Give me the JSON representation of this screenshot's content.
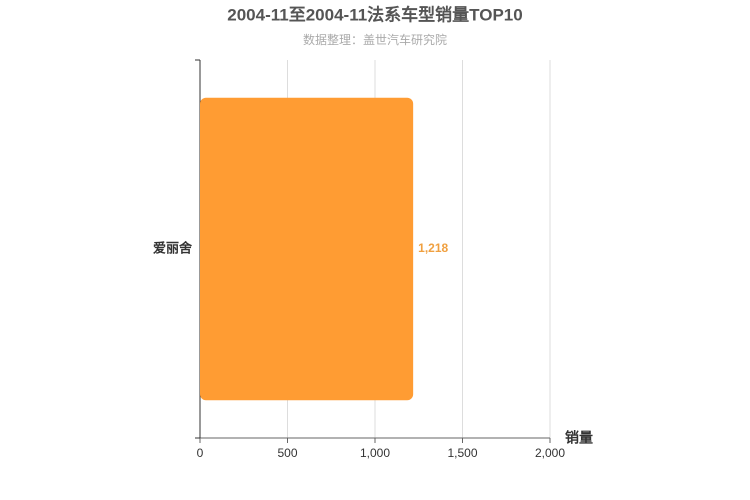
{
  "chart_data": {
    "type": "bar",
    "orientation": "horizontal",
    "title": "2004-11至2004-11法系车型销量TOP10",
    "subtitle": "数据整理：盖世汽车研究院",
    "x_label": "销量",
    "categories": [
      "爱丽舍"
    ],
    "values": [
      1218
    ],
    "value_labels": [
      "1,218"
    ],
    "color": "#ff9c33",
    "xlim": [
      0,
      2000
    ],
    "xticks": [
      0,
      500,
      {
        "value": 1000,
        "label": "1,000"
      },
      {
        "value": 1500,
        "label": "1,500"
      },
      {
        "value": 2000,
        "label": "2,000"
      }
    ],
    "grid": true
  }
}
